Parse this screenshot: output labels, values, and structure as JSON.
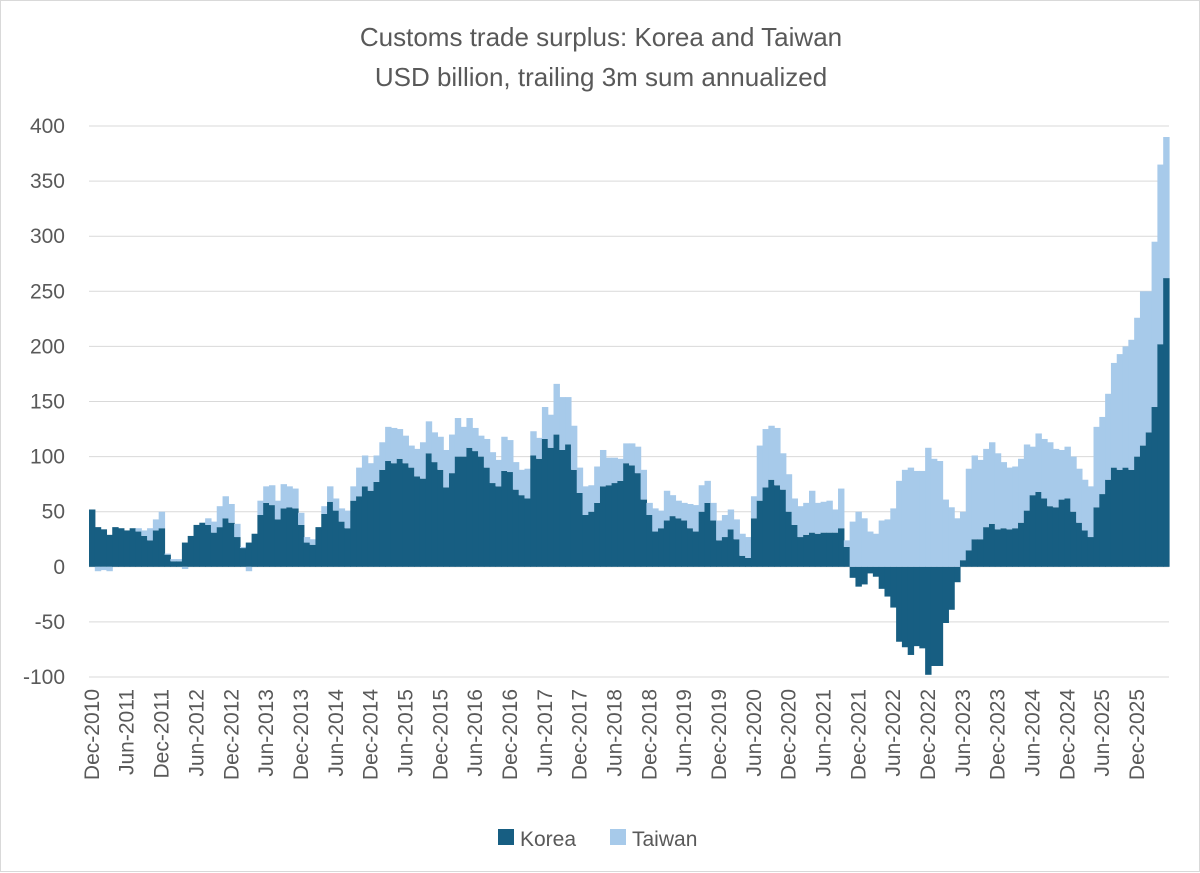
{
  "colors": {
    "korea": "#175E82",
    "taiwan": "#A7CAEA",
    "grid": "#d9d9d9",
    "text": "#595959"
  },
  "chart_data": {
    "type": "bar",
    "stacked": true,
    "title": "Customs trade surplus: Korea and Taiwan",
    "subtitle": "USD billion, trailing 3m sum annualized",
    "start_month": "Dec-2010",
    "frequency": "monthly",
    "ylim": [
      -100,
      400
    ],
    "yticks": [
      400,
      350,
      300,
      250,
      200,
      150,
      100,
      50,
      0,
      -50,
      -100
    ],
    "xtick_labels": [
      "Dec-2010",
      "Jun-2011",
      "Dec-2011",
      "Jun-2012",
      "Dec-2012",
      "Jun-2013",
      "Dec-2013",
      "Jun-2014",
      "Dec-2014",
      "Jun-2015",
      "Dec-2015",
      "Jun-2016",
      "Dec-2016",
      "Jun-2017",
      "Dec-2017",
      "Jun-2018",
      "Dec-2018",
      "Jun-2019",
      "Dec-2019",
      "Jun-2020",
      "Dec-2020",
      "Jun-2021",
      "Dec-2021",
      "Jun-2022",
      "Dec-2022",
      "Jun-2023",
      "Dec-2023",
      "Jun-2024",
      "Dec-2024",
      "Jun-2025",
      "Dec-2025"
    ],
    "grid": true,
    "legend_position": "bottom",
    "series": [
      {
        "name": "Korea",
        "values": [
          52,
          36,
          34,
          29,
          36,
          35,
          33,
          35,
          32,
          28,
          24,
          33,
          35,
          11,
          5,
          5,
          22,
          28,
          38,
          40,
          38,
          31,
          36,
          44,
          40,
          27,
          17,
          22,
          30,
          47,
          58,
          56,
          43,
          53,
          54,
          53,
          38,
          22,
          20,
          36,
          48,
          59,
          51,
          41,
          35,
          60,
          64,
          73,
          69,
          77,
          88,
          96,
          94,
          98,
          94,
          90,
          82,
          80,
          103,
          95,
          88,
          72,
          85,
          100,
          100,
          108,
          105,
          100,
          90,
          76,
          73,
          87,
          86,
          70,
          65,
          62,
          101,
          98,
          116,
          108,
          120,
          106,
          111,
          88,
          67,
          47,
          50,
          58,
          73,
          74,
          76,
          78,
          94,
          92,
          85,
          61,
          47,
          32,
          35,
          42,
          46,
          44,
          42,
          35,
          32,
          50,
          58,
          42,
          24,
          27,
          34,
          25,
          10,
          8,
          44,
          60,
          72,
          79,
          74,
          70,
          50,
          38,
          27,
          29,
          31,
          30,
          31,
          31,
          31,
          35,
          18,
          -10,
          -18,
          -16,
          -6,
          -9,
          -20,
          -27,
          -37,
          -68,
          -73,
          -80,
          -72,
          -74,
          -98,
          -90,
          -90,
          -51,
          -39,
          -14,
          6,
          15,
          25,
          25,
          36,
          39,
          34,
          35,
          34,
          35,
          40,
          51,
          65,
          68,
          62,
          55,
          54,
          61,
          62,
          50,
          40,
          33,
          27,
          54,
          66,
          79,
          90,
          88,
          90,
          88,
          100,
          110,
          122,
          145,
          202,
          262
        ]
      },
      {
        "name": "Taiwan",
        "values": [
          0,
          -4,
          -3,
          -4,
          0,
          0,
          0,
          0,
          3,
          5,
          11,
          10,
          15,
          1,
          2,
          2,
          -2,
          0,
          0,
          0,
          6,
          10,
          19,
          20,
          17,
          12,
          1,
          -4,
          0,
          13,
          15,
          18,
          17,
          22,
          19,
          18,
          11,
          5,
          5,
          0,
          7,
          14,
          11,
          12,
          16,
          13,
          26,
          28,
          25,
          24,
          25,
          31,
          32,
          27,
          25,
          20,
          25,
          33,
          29,
          27,
          30,
          34,
          35,
          35,
          27,
          27,
          21,
          19,
          26,
          28,
          24,
          31,
          29,
          25,
          23,
          27,
          22,
          19,
          29,
          30,
          46,
          48,
          43,
          40,
          23,
          26,
          24,
          33,
          33,
          25,
          23,
          20,
          18,
          20,
          24,
          27,
          11,
          21,
          16,
          27,
          19,
          16,
          16,
          22,
          24,
          24,
          20,
          16,
          18,
          20,
          18,
          18,
          20,
          19,
          20,
          50,
          53,
          49,
          52,
          33,
          34,
          24,
          28,
          29,
          38,
          28,
          28,
          29,
          21,
          36,
          6,
          41,
          50,
          44,
          32,
          30,
          42,
          43,
          53,
          78,
          88,
          90,
          87,
          87,
          108,
          98,
          96,
          61,
          54,
          44,
          44,
          74,
          76,
          72,
          71,
          74,
          69,
          60,
          56,
          56,
          58,
          60,
          44,
          53,
          54,
          58,
          53,
          45,
          47,
          50,
          49,
          46,
          46,
          73,
          70,
          78,
          95,
          105,
          110,
          118,
          126,
          140,
          128,
          150,
          163,
          128
        ]
      }
    ]
  },
  "legend": {
    "items": [
      "Korea",
      "Taiwan"
    ]
  }
}
